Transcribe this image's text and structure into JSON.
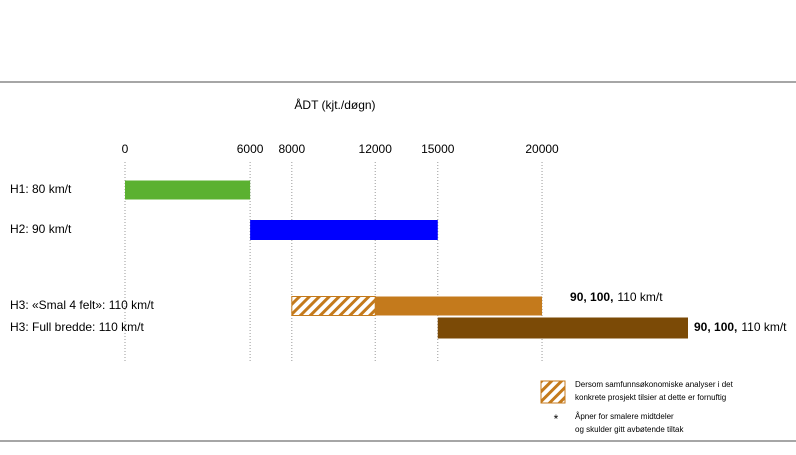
{
  "chart_data": {
    "type": "range-bar",
    "title": "ÅDT (kjt./døgn)",
    "xlim": [
      0,
      27000
    ],
    "xticks": [
      0,
      6000,
      8000,
      12000,
      15000,
      20000
    ],
    "grid": true,
    "rows": [
      {
        "label": "H1: 80 km/t",
        "segments": [
          {
            "start": 0,
            "end": 6000,
            "color": "#5bb131"
          }
        ]
      },
      {
        "label": "H2: 90 km/t",
        "segments": [
          {
            "start": 6000,
            "end": 15000,
            "color": "#0000ff"
          }
        ]
      },
      {
        "label": "H3: «Smal 4 felt»:  110 km/t",
        "segments": [
          {
            "start": 8000,
            "end": 12000,
            "color": "#c47a1c",
            "pattern": "hatch"
          },
          {
            "start": 12000,
            "end": 20000,
            "color": "#c47a1c"
          }
        ],
        "note_bold": "90, 100,",
        "note": "110 km/t"
      },
      {
        "label": "H3: Full bredde: 110 km/t",
        "segments": [
          {
            "start": 15000,
            "end": 27000,
            "color": "#7b4a06"
          }
        ],
        "note_bold": "90, 100,",
        "note": "110 km/t"
      }
    ],
    "legend": [
      {
        "symbol": "hatch",
        "color": "#c47a1c",
        "lines": [
          "Dersom samfunnsøkonomiske analyser i det",
          "konkrete prosjekt tilsier at dette er fornuftig"
        ]
      },
      {
        "symbol": "*",
        "lines": [
          "Åpner for smalere midtdeler",
          "og skulder gitt avbøtende tiltak"
        ]
      }
    ]
  }
}
